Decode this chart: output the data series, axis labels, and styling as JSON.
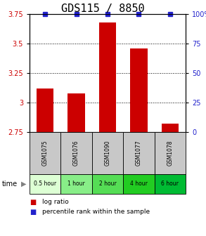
{
  "title": "GDS115 / 8850",
  "samples": [
    "GSM1075",
    "GSM1076",
    "GSM1090",
    "GSM1077",
    "GSM1078"
  ],
  "time_labels": [
    "0.5 hour",
    "1 hour",
    "2 hour",
    "4 hour",
    "6 hour"
  ],
  "log_ratios": [
    3.12,
    3.08,
    3.68,
    3.46,
    2.82
  ],
  "percentile_ranks": [
    100,
    100,
    100,
    100,
    100
  ],
  "ylim": [
    2.75,
    3.75
  ],
  "yticks": [
    2.75,
    3.0,
    3.25,
    3.5,
    3.75
  ],
  "ytick_labels_left": [
    "2.75",
    "3",
    "3.25",
    "3.5",
    "3.75"
  ],
  "ytick_labels_right": [
    "0",
    "25",
    "50",
    "75",
    "100%"
  ],
  "bar_color": "#cc0000",
  "percentile_color": "#2222cc",
  "bar_width": 0.55,
  "grid_yticks": [
    3.0,
    3.25,
    3.5
  ],
  "title_fontsize": 11,
  "tick_fontsize": 7,
  "sample_row_color": "#c8c8c8",
  "time_colors": [
    "#ddffd4",
    "#88ee88",
    "#55dd55",
    "#22cc22",
    "#00bb33"
  ],
  "legend_bar_label": "log ratio",
  "legend_pct_label": "percentile rank within the sample"
}
